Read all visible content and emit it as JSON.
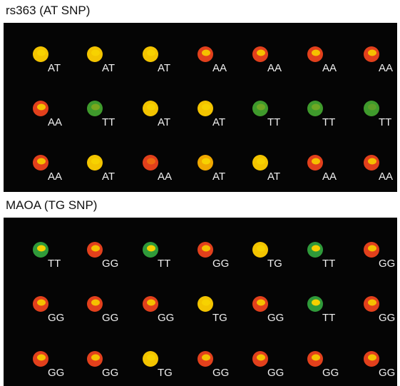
{
  "panels": [
    {
      "title": "rs363 (AT SNP)",
      "rows": [
        [
          {
            "label": "AT",
            "color": "#f3c400",
            "core": "#f7d200"
          },
          {
            "label": "AT",
            "color": "#f3c400",
            "core": "#f7d200"
          },
          {
            "label": "AT",
            "color": "#f3c400",
            "core": "#f7d200"
          },
          {
            "label": "AA",
            "color": "#e2401c",
            "core": "#f5c000"
          },
          {
            "label": "AA",
            "color": "#e2401c",
            "core": "#f5c000"
          },
          {
            "label": "AA",
            "color": "#e2401c",
            "core": "#f5c000"
          },
          {
            "label": "AA",
            "color": "#e2401c",
            "core": "#f5c000"
          }
        ],
        [
          {
            "label": "AA",
            "color": "#e2401c",
            "core": "#f5c000"
          },
          {
            "label": "TT",
            "color": "#3f9a2c",
            "core": "#7aa81e"
          },
          {
            "label": "AT",
            "color": "#f3c400",
            "core": "#f7d200"
          },
          {
            "label": "AT",
            "color": "#f3c400",
            "core": "#f7d200"
          },
          {
            "label": "TT",
            "color": "#3f9a2c",
            "core": "#6fa824"
          },
          {
            "label": "TT",
            "color": "#3f9a2c",
            "core": "#6fa824"
          },
          {
            "label": "TT",
            "color": "#3f9a2c",
            "core": "#5d9f28"
          }
        ],
        [
          {
            "label": "AA",
            "color": "#e2401c",
            "core": "#f5c000"
          },
          {
            "label": "AT",
            "color": "#f3c400",
            "core": "#f7d200"
          },
          {
            "label": "AA",
            "color": "#e2401c",
            "core": "#ee6a10"
          },
          {
            "label": "AT",
            "color": "#f0a800",
            "core": "#f7d200"
          },
          {
            "label": "AT",
            "color": "#f3c400",
            "core": "#f7d200"
          },
          {
            "label": "AA",
            "color": "#e2401c",
            "core": "#f5c000"
          },
          {
            "label": "AA",
            "color": "#e2401c",
            "core": "#f5c000"
          }
        ]
      ]
    },
    {
      "title": "MAOA (TG SNP)",
      "rows": [
        [
          {
            "label": "TT",
            "color": "#2f9a3a",
            "core": "#f5d000"
          },
          {
            "label": "GG",
            "color": "#e2401c",
            "core": "#f5c000"
          },
          {
            "label": "TT",
            "color": "#2f9a3a",
            "core": "#f5d000"
          },
          {
            "label": "GG",
            "color": "#e2401c",
            "core": "#f5c000"
          },
          {
            "label": "TG",
            "color": "#f3c400",
            "core": "#f7d200"
          },
          {
            "label": "TT",
            "color": "#2f9a3a",
            "core": "#f5d000"
          },
          {
            "label": "GG",
            "color": "#e2401c",
            "core": "#f5c000"
          }
        ],
        [
          {
            "label": "GG",
            "color": "#e2401c",
            "core": "#f5c000"
          },
          {
            "label": "GG",
            "color": "#e2401c",
            "core": "#f5c000"
          },
          {
            "label": "GG",
            "color": "#e2401c",
            "core": "#f5c000"
          },
          {
            "label": "TG",
            "color": "#f3c400",
            "core": "#f7d200"
          },
          {
            "label": "GG",
            "color": "#e2401c",
            "core": "#f5c000"
          },
          {
            "label": "TT",
            "color": "#2f9a3a",
            "core": "#f5d000"
          },
          {
            "label": "GG",
            "color": "#e2401c",
            "core": "#f5c000"
          }
        ],
        [
          {
            "label": "GG",
            "color": "#e2401c",
            "core": "#f5c000"
          },
          {
            "label": "GG",
            "color": "#e2401c",
            "core": "#f5c000"
          },
          {
            "label": "TG",
            "color": "#f3c400",
            "core": "#f7d200"
          },
          {
            "label": "GG",
            "color": "#e2401c",
            "core": "#f5c000"
          },
          {
            "label": "GG",
            "color": "#e2401c",
            "core": "#f5c000"
          },
          {
            "label": "GG",
            "color": "#e2401c",
            "core": "#f5c000"
          },
          {
            "label": "GG",
            "color": "#e2401c",
            "core": "#f5c000"
          }
        ]
      ]
    }
  ]
}
